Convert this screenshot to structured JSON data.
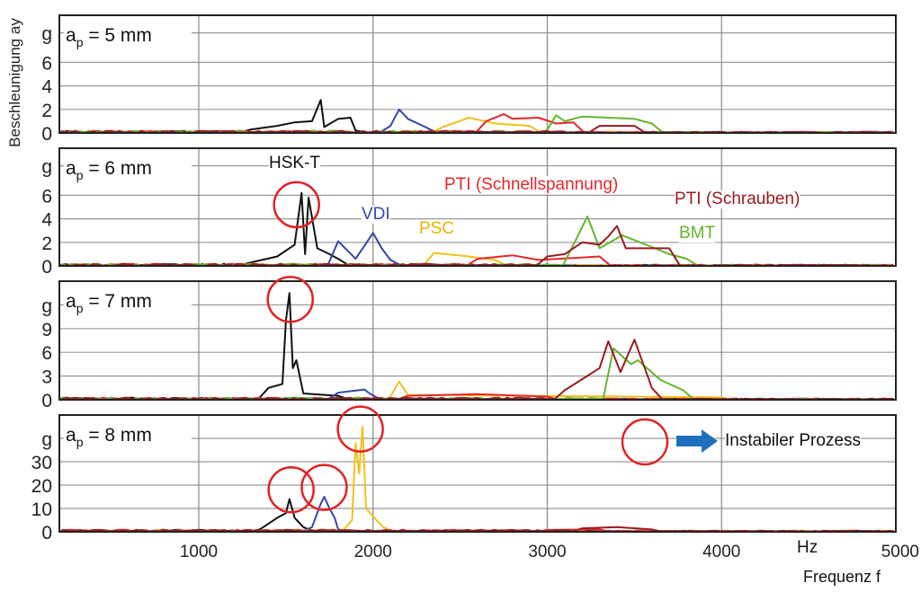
{
  "chart_data": {
    "type": "line",
    "ylabel": "Beschleunigung ay",
    "xlabel": "Frequenz f",
    "xunit": "Hz",
    "xlim": [
      200,
      5000
    ],
    "xticks": [
      {
        "v": 1000,
        "t": "1000"
      },
      {
        "v": 2000,
        "t": "2000"
      },
      {
        "v": 3000,
        "t": "3000"
      },
      {
        "v": 4000,
        "t": "4000"
      },
      {
        "v": 5000,
        "t": "5000"
      }
    ],
    "grid": true,
    "series_colors": {
      "HSK-T": "#111111",
      "VDI": "#3447a8",
      "PSC": "#f2c11a",
      "PTI (Schnellspannung)": "#e5262b",
      "PTI (Schrauben)": "#981c20",
      "BMT": "#66b52d"
    },
    "legend_labels": [
      "HSK-T",
      "VDI",
      "PSC",
      "PTI (Schnellspannung)",
      "PTI (Schrauben)",
      "BMT"
    ],
    "right_note": "Instabiler Prozess",
    "panels": [
      {
        "title_main": "a",
        "title_sub": "p",
        "title_rest": " = 5 mm",
        "ylim": [
          0,
          10
        ],
        "yticks": [
          {
            "v": 0,
            "t": "0"
          },
          {
            "v": 2,
            "t": "2"
          },
          {
            "v": 4,
            "t": "4"
          },
          {
            "v": 6,
            "t": "6"
          },
          {
            "v": 8.5,
            "t": "g"
          }
        ],
        "series": {
          "HSK-T": [
            [
              1300,
              0.3
            ],
            [
              1450,
              0.6
            ],
            [
              1550,
              0.9
            ],
            [
              1650,
              1.0
            ],
            [
              1700,
              2.8
            ],
            [
              1720,
              0.5
            ],
            [
              1800,
              1.2
            ],
            [
              1870,
              1.3
            ],
            [
              1900,
              0.2
            ]
          ],
          "VDI": [
            [
              2100,
              0.6
            ],
            [
              2150,
              2.0
            ],
            [
              2200,
              1.2
            ],
            [
              2300,
              0.5
            ]
          ],
          "PSC": [
            [
              2400,
              0.5
            ],
            [
              2550,
              1.3
            ],
            [
              2700,
              0.8
            ],
            [
              2900,
              0.6
            ]
          ],
          "PTI (Schnellspannung)": [
            [
              2650,
              1.0
            ],
            [
              2750,
              1.6
            ],
            [
              2800,
              1.2
            ],
            [
              2950,
              1.3
            ],
            [
              3050,
              0.8
            ],
            [
              3150,
              0.9
            ]
          ],
          "PTI (Schrauben)": [
            [
              3300,
              0.6
            ],
            [
              3500,
              0.6
            ]
          ],
          "BMT": [
            [
              3050,
              1.5
            ],
            [
              3100,
              1.0
            ],
            [
              3200,
              1.4
            ],
            [
              3500,
              1.2
            ],
            [
              3600,
              0.8
            ]
          ]
        },
        "circles": []
      },
      {
        "title_main": "a",
        "title_sub": "p",
        "title_rest": " = 6 mm",
        "ylim": [
          0,
          10
        ],
        "yticks": [
          {
            "v": 0,
            "t": "0"
          },
          {
            "v": 2,
            "t": "2"
          },
          {
            "v": 4,
            "t": "4"
          },
          {
            "v": 6,
            "t": "6"
          },
          {
            "v": 8.5,
            "t": "g"
          }
        ],
        "series": {
          "HSK-T": [
            [
              1300,
              0.3
            ],
            [
              1450,
              0.8
            ],
            [
              1550,
              1.8
            ],
            [
              1590,
              6.2
            ],
            [
              1610,
              1.0
            ],
            [
              1630,
              5.8
            ],
            [
              1680,
              1.5
            ],
            [
              1750,
              1.0
            ],
            [
              1800,
              0.6
            ]
          ],
          "VDI": [
            [
              1800,
              2.1
            ],
            [
              1900,
              0.6
            ],
            [
              2000,
              2.8
            ],
            [
              2050,
              1.5
            ],
            [
              2100,
              0.5
            ]
          ],
          "PSC": [
            [
              2350,
              1.1
            ],
            [
              2550,
              0.8
            ],
            [
              2700,
              0.5
            ]
          ],
          "PTI (Schnellspannung)": [
            [
              2600,
              0.6
            ],
            [
              2800,
              0.9
            ],
            [
              2950,
              0.5
            ],
            [
              3300,
              0.8
            ]
          ],
          "PTI (Schrauben)": [
            [
              3000,
              0.8
            ],
            [
              3100,
              1.0
            ],
            [
              3200,
              2.0
            ],
            [
              3300,
              1.8
            ],
            [
              3350,
              2.5
            ],
            [
              3400,
              3.4
            ],
            [
              3450,
              1.5
            ],
            [
              3700,
              1.5
            ]
          ],
          "BMT": [
            [
              3150,
              1.8
            ],
            [
              3230,
              4.2
            ],
            [
              3300,
              1.5
            ],
            [
              3430,
              2.6
            ],
            [
              3600,
              1.6
            ],
            [
              3700,
              1.0
            ],
            [
              3800,
              0.6
            ]
          ]
        },
        "circles": [
          [
            1561,
            5.2
          ]
        ]
      },
      {
        "title_main": "a",
        "title_sub": "p",
        "title_rest": " = 7 mm",
        "ylim": [
          0,
          15
        ],
        "yticks": [
          {
            "v": 0,
            "t": "0"
          },
          {
            "v": 3,
            "t": "3"
          },
          {
            "v": 6,
            "t": "6"
          },
          {
            "v": 9,
            "t": "9"
          },
          {
            "v": 12,
            "t": "g"
          }
        ],
        "series": {
          "HSK-T": [
            [
              1400,
              1.5
            ],
            [
              1480,
              2.0
            ],
            [
              1500,
              10
            ],
            [
              1520,
              13.5
            ],
            [
              1540,
              4
            ],
            [
              1560,
              5
            ],
            [
              1600,
              0.8
            ],
            [
              1800,
              0.5
            ]
          ],
          "VDI": [
            [
              1800,
              0.9
            ],
            [
              1950,
              1.3
            ],
            [
              1980,
              0.8
            ]
          ],
          "PSC": [
            [
              2150,
              2.3
            ],
            [
              2200,
              0.6
            ],
            [
              2400,
              0.6
            ],
            [
              4000,
              0.3
            ]
          ],
          "PTI (Schnellspannung)": [
            [
              2200,
              0.5
            ],
            [
              2600,
              0.7
            ],
            [
              3000,
              0.4
            ]
          ],
          "PTI (Schrauben)": [
            [
              3100,
              1.2
            ],
            [
              3200,
              2.6
            ],
            [
              3300,
              4.0
            ],
            [
              3350,
              7.4
            ],
            [
              3420,
              3.5
            ],
            [
              3500,
              7.6
            ],
            [
              3600,
              1.5
            ]
          ],
          "BMT": [
            [
              3380,
              6.5
            ],
            [
              3480,
              4.5
            ],
            [
              3520,
              5.0
            ],
            [
              3650,
              2.5
            ],
            [
              3780,
              1.2
            ]
          ]
        },
        "circles": [
          [
            1525,
            12.7
          ]
        ]
      },
      {
        "title_main": "a",
        "title_sub": "p",
        "title_rest": " = 8 mm",
        "ylim": [
          0,
          50
        ],
        "yticks": [
          {
            "v": 0,
            "t": "0"
          },
          {
            "v": 10,
            "t": "10"
          },
          {
            "v": 20,
            "t": "20"
          },
          {
            "v": 30,
            "t": "30"
          },
          {
            "v": 40,
            "t": "g"
          }
        ],
        "series": {
          "HSK-T": [
            [
              1350,
              1
            ],
            [
              1450,
              6
            ],
            [
              1500,
              8
            ],
            [
              1520,
              14
            ],
            [
              1550,
              6
            ],
            [
              1600,
              2
            ]
          ],
          "VDI": [
            [
              1650,
              2
            ],
            [
              1700,
              12
            ],
            [
              1720,
              15
            ],
            [
              1750,
              10
            ],
            [
              1780,
              6
            ],
            [
              1800,
              1
            ]
          ],
          "PSC": [
            [
              1880,
              5
            ],
            [
              1900,
              38
            ],
            [
              1920,
              25
            ],
            [
              1940,
              45
            ],
            [
              1960,
              10
            ],
            [
              2020,
              5
            ],
            [
              2060,
              2
            ]
          ],
          "PTI (Schnellspannung)": [
            [
              3000,
              0.8
            ],
            [
              3300,
              1
            ]
          ],
          "PTI (Schrauben)": [
            [
              3200,
              1.5
            ],
            [
              3400,
              2
            ],
            [
              3600,
              1
            ]
          ],
          "BMT": []
        },
        "circles": [
          [
            1530,
            18
          ],
          [
            1720,
            19
          ],
          [
            1927,
            44
          ],
          [
            3560,
            38.5
          ]
        ]
      }
    ]
  }
}
